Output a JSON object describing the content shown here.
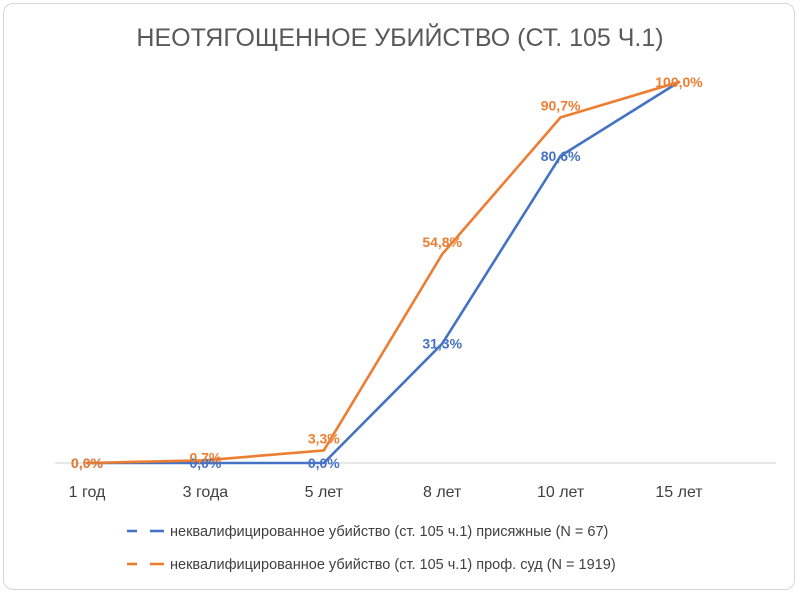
{
  "chart_data": {
    "type": "line",
    "title": "НЕОТЯГОЩЕННОЕ УБИЙСТВО (СТ. 105 Ч.1)",
    "categories": [
      "1 год",
      "3 года",
      "5 лет",
      "8 лет",
      "10 лет",
      "15 лет"
    ],
    "ylim": [
      0,
      100
    ],
    "grid": false,
    "legend_position": "bottom",
    "series": [
      {
        "name": "неквалифицированное убийство (ст. 105 ч.1) присяжные (N = 67)",
        "color": "#4472C4",
        "values": [
          0.0,
          0.0,
          0.0,
          31.3,
          80.6,
          100.0
        ],
        "labels": [
          "0,0%",
          "0,0%",
          "0,0%",
          "31,3%",
          "80,6%",
          ""
        ]
      },
      {
        "name": "неквалифицированное убийство (ст. 105 ч.1) проф. суд  (N = 1919)",
        "color": "#ED7D31",
        "values": [
          0.0,
          0.7,
          3.3,
          54.8,
          90.7,
          100.0
        ],
        "labels": [
          "0,0%",
          "0,7%",
          "3,3%",
          "54,8%",
          "90,7%",
          "100,0%"
        ]
      }
    ]
  }
}
